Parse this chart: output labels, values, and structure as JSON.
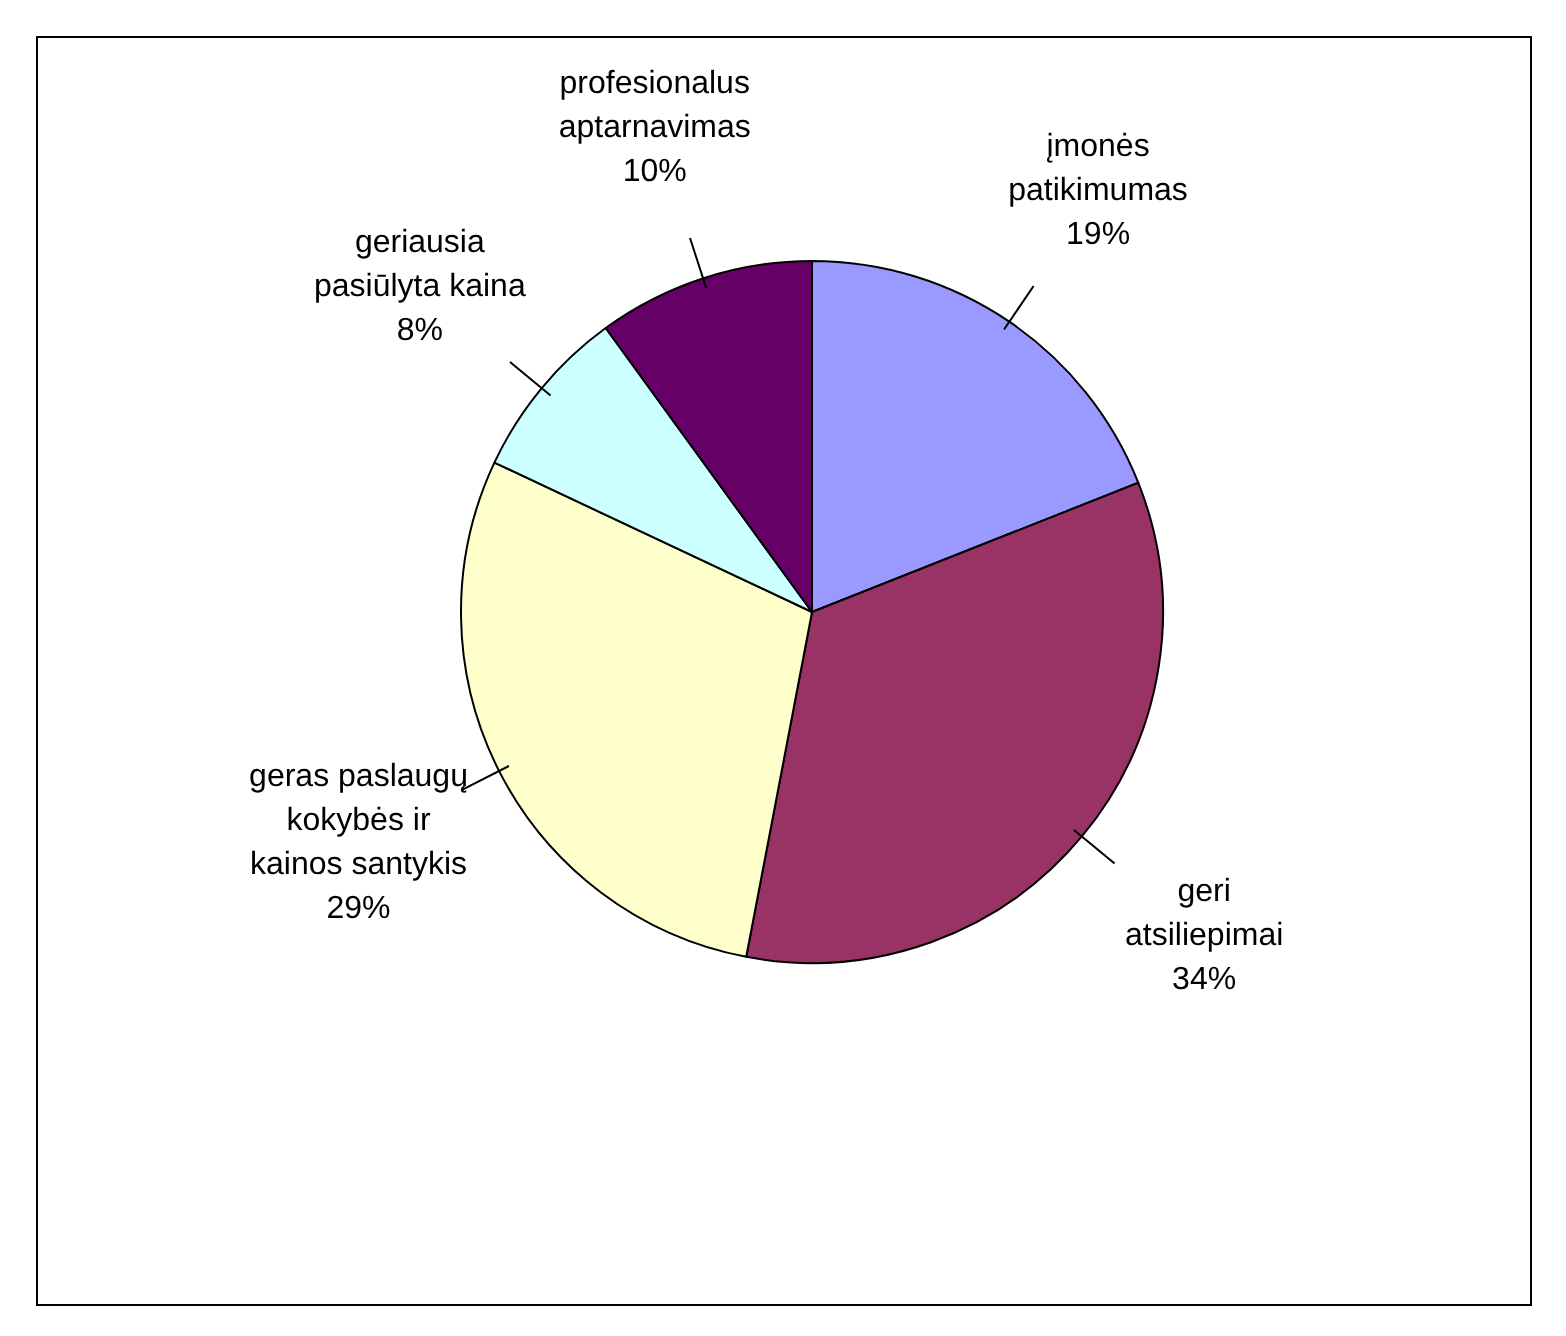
{
  "chart_data": {
    "type": "pie",
    "categories": [
      "įmonės patikimumas",
      "geri atsiliepimai",
      "geras paslaugų kokybės ir kainos santykis",
      "geriausia pasiūlyta kaina",
      "profesionalus aptarnavimas"
    ],
    "values": [
      19,
      34,
      29,
      8,
      10
    ],
    "value_labels": [
      "19%",
      "34%",
      "29%",
      "8%",
      "10%"
    ],
    "colors": [
      "#9999ff",
      "#993366",
      "#ffffcc",
      "#ccffff",
      "#660066"
    ],
    "legend": false
  }
}
